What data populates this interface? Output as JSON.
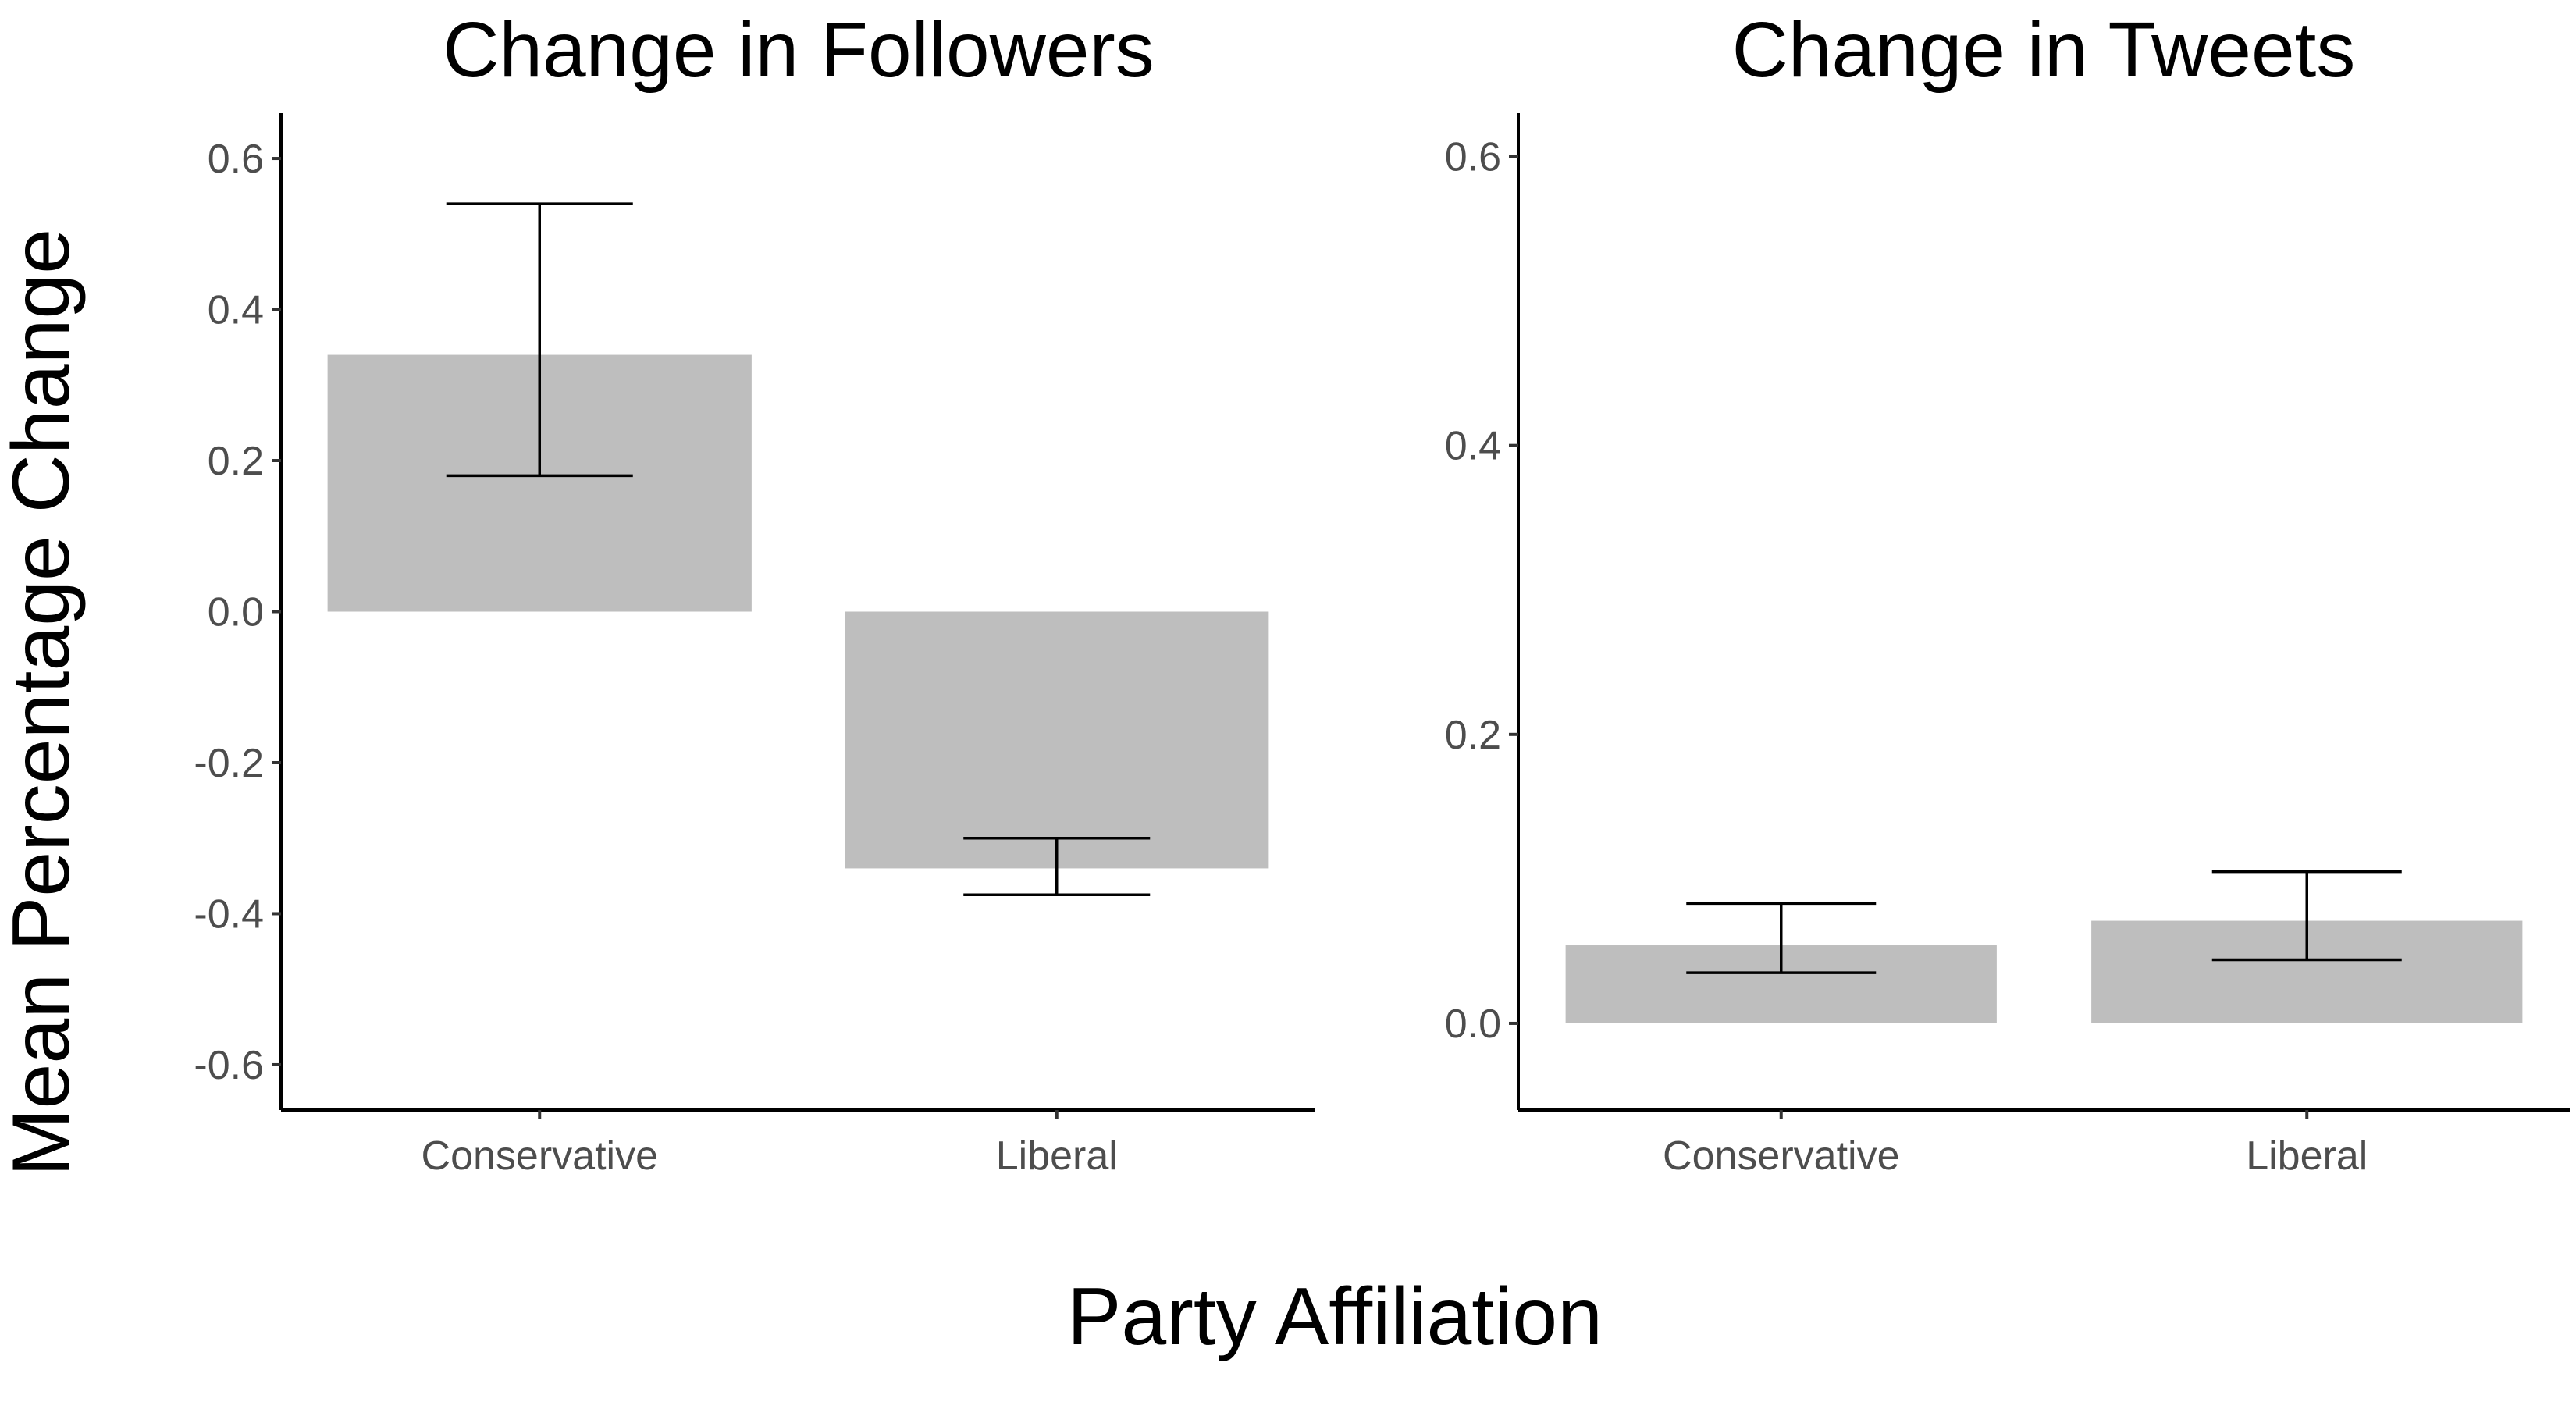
{
  "chart_data": [
    {
      "type": "bar",
      "title": "Change in Followers",
      "xlabel": "Party Affiliation",
      "ylabel": "Mean Percentage Change",
      "categories": [
        "Conservative",
        "Liberal"
      ],
      "values": [
        0.34,
        -0.34
      ],
      "error_low": [
        0.18,
        -0.375
      ],
      "error_high": [
        0.54,
        -0.3
      ],
      "ylim": [
        -0.66,
        0.66
      ],
      "yticks": [
        -0.6,
        -0.4,
        -0.2,
        0.0,
        0.2,
        0.4,
        0.6
      ],
      "ytick_labels": [
        "-0.6",
        "-0.4",
        "-0.2",
        "0.0",
        "0.2",
        "0.4",
        "0.6"
      ],
      "bar_color": "#bebebe",
      "grid": false
    },
    {
      "type": "bar",
      "title": "Change in Tweets",
      "xlabel": "Party Affiliation",
      "ylabel": "Mean Percentage Change",
      "categories": [
        "Conservative",
        "Liberal"
      ],
      "values": [
        0.054,
        0.071
      ],
      "error_low": [
        0.035,
        0.044
      ],
      "error_high": [
        0.083,
        0.105
      ],
      "ylim": [
        -0.06,
        0.63
      ],
      "yticks": [
        0.0,
        0.2,
        0.4,
        0.6
      ],
      "ytick_labels": [
        "0.0",
        "0.2",
        "0.4",
        "0.6"
      ],
      "bar_color": "#bebebe",
      "grid": false
    }
  ],
  "shared": {
    "ylabel": "Mean Percentage Change",
    "xlabel": "Party Affiliation"
  }
}
